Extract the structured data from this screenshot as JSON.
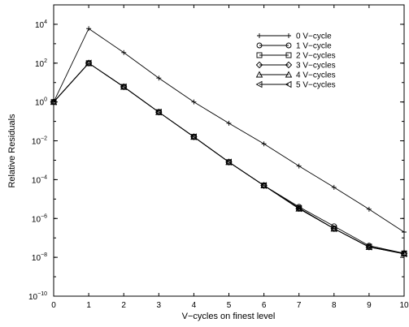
{
  "chart_data": {
    "type": "line",
    "xlabel": "V−cycles on finest level",
    "ylabel": "Relative Residuals",
    "xlim": [
      0,
      10
    ],
    "ylim_exponent": [
      -10,
      5
    ],
    "y_scale": "log",
    "x_ticks": [
      "0",
      "1",
      "2",
      "3",
      "4",
      "5",
      "6",
      "7",
      "8",
      "9",
      "10"
    ],
    "y_ticks": [
      {
        "base": "10",
        "exp": "4",
        "value": 4
      },
      {
        "base": "10",
        "exp": "2",
        "value": 2
      },
      {
        "base": "10",
        "exp": "0",
        "value": 0
      },
      {
        "base": "10",
        "exp": "−2",
        "value": -2
      },
      {
        "base": "10",
        "exp": "−4",
        "value": -4
      },
      {
        "base": "10",
        "exp": "−6",
        "value": -6
      },
      {
        "base": "10",
        "exp": "−8",
        "value": -8
      },
      {
        "base": "10",
        "exp": "−10",
        "value": -10
      }
    ],
    "legend_position": "top-right",
    "x": [
      0,
      1,
      2,
      3,
      4,
      5,
      6,
      7,
      8,
      9,
      10
    ],
    "series": [
      {
        "name": "0 V−cycle",
        "marker": "plus",
        "values": [
          1,
          6000,
          350,
          17,
          1.0,
          0.08,
          0.007,
          0.0005,
          4e-05,
          3e-06,
          2e-07
        ]
      },
      {
        "name": "1 V−cycle",
        "marker": "circle",
        "values": [
          1,
          100,
          6,
          0.3,
          0.016,
          0.0008,
          5e-05,
          4e-06,
          4e-07,
          4e-08,
          1.6e-08
        ]
      },
      {
        "name": "2 V−cycles",
        "marker": "square",
        "values": [
          1,
          100,
          6,
          0.3,
          0.016,
          0.0008,
          5e-05,
          3.5e-06,
          3e-07,
          3.5e-08,
          1.6e-08
        ]
      },
      {
        "name": "3 V−cycles",
        "marker": "diamond",
        "values": [
          1,
          100,
          6,
          0.3,
          0.016,
          0.0008,
          5e-05,
          3.3e-06,
          3e-07,
          3.4e-08,
          1.6e-08
        ]
      },
      {
        "name": "4 V−cycles",
        "marker": "triangle-up",
        "values": [
          1,
          100,
          6,
          0.3,
          0.016,
          0.0008,
          5e-05,
          3.2e-06,
          3e-07,
          3.4e-08,
          1.6e-08
        ]
      },
      {
        "name": "5 V−cycles",
        "marker": "triangle-left",
        "values": [
          1,
          100,
          6,
          0.3,
          0.016,
          0.0008,
          5e-05,
          3.2e-06,
          3e-07,
          3.4e-08,
          1.5e-08
        ]
      }
    ]
  }
}
